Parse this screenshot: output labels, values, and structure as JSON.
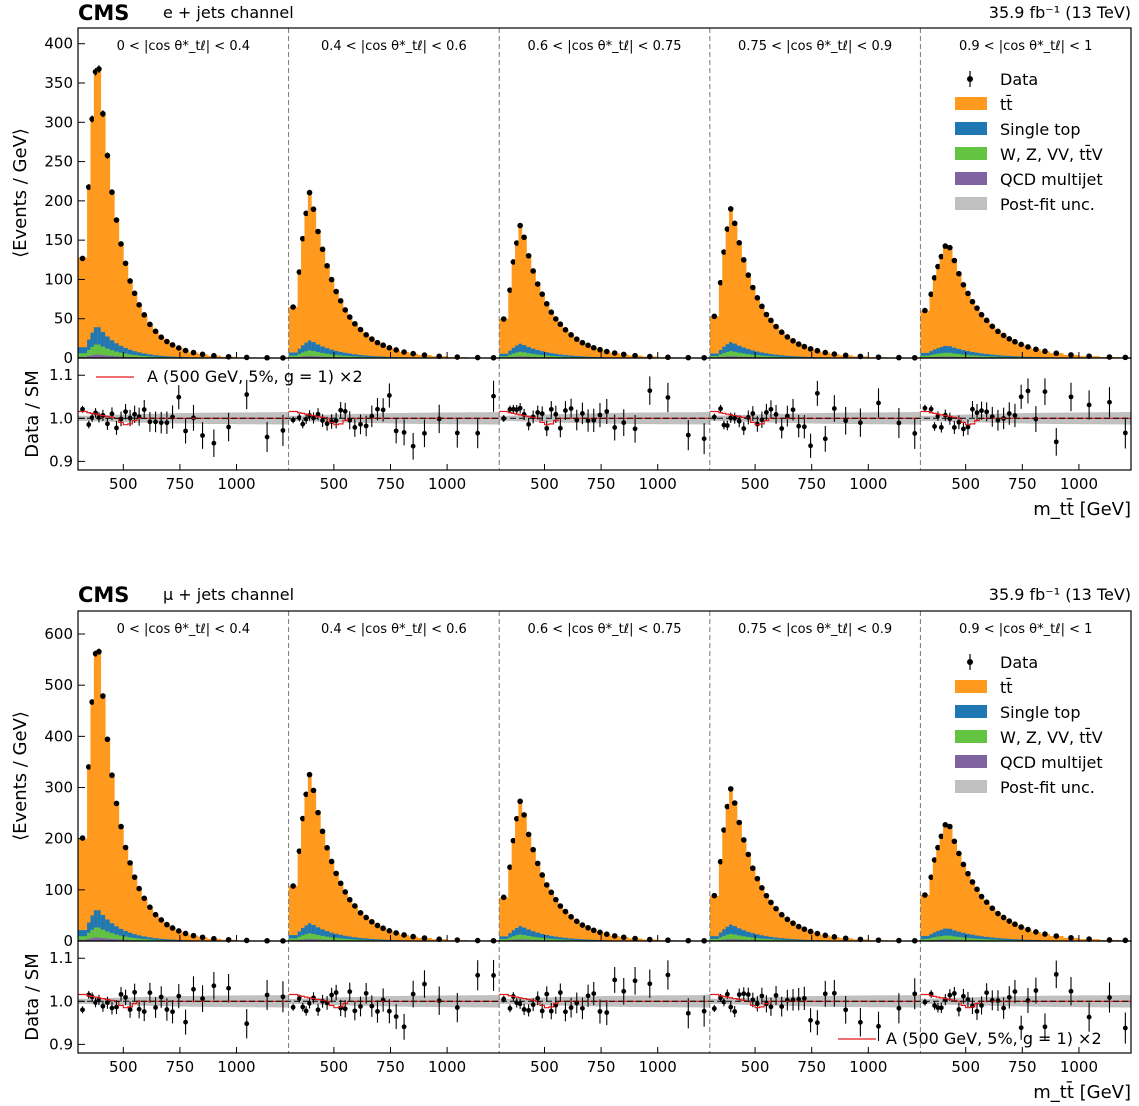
{
  "chart_data": [
    {
      "type": "bar",
      "stacked": true,
      "experiment": "CMS",
      "channel": "e + jets channel",
      "lumi": "35.9 fb⁻¹ (13 TeV)",
      "ylabel": "⟨Events / GeV⟩",
      "ratio_ylabel": "Data / SM",
      "xlabel": "m_tt̄ [GeV]",
      "ylim": [
        0,
        420
      ],
      "yticks": [
        0,
        50,
        100,
        150,
        200,
        250,
        300,
        350,
        400
      ],
      "ratio_ylim": [
        0.88,
        1.14
      ],
      "ratio_yticks": [
        "0.9",
        "1.0",
        "1.1"
      ],
      "xticks": [
        "500",
        "750",
        "1000"
      ],
      "xlim_per_bin": [
        300,
        1230
      ],
      "cos_bins": [
        "0 < |cos θ*_tℓ| < 0.4",
        "0.4 < |cos θ*_tℓ| < 0.6",
        "0.6 < |cos θ*_tℓ| < 0.75",
        "0.75 < |cos θ*_tℓ| < 0.9",
        "0.9 < |cos θ*_tℓ| < 1"
      ],
      "legend": [
        "Data",
        "tt̄",
        "Single top",
        "W, Z, VV, tt̄V",
        "QCD multijet",
        "Post-fit unc."
      ],
      "signal_label": "A (500 GeV, 5%, g = 1) ×2",
      "legend_position": "right",
      "signal_legend_position": "upper-left of ratio",
      "peaks": [
        393,
        213,
        173,
        193,
        150
      ],
      "first_bin": [
        128,
        65,
        50,
        53,
        60
      ],
      "colors": {
        "ttbar": "#ff9a1e",
        "single_top": "#1f77b4",
        "vjets": "#63c442",
        "qcd": "#8064a2",
        "unc": "#c0c0c0",
        "signal": "#e31a1c",
        "data": "#000000"
      }
    },
    {
      "type": "bar",
      "stacked": true,
      "experiment": "CMS",
      "channel": "μ + jets channel",
      "lumi": "35.9 fb⁻¹ (13 TeV)",
      "ylabel": "⟨Events / GeV⟩",
      "ratio_ylabel": "Data / SM",
      "xlabel": "m_tt̄ [GeV]",
      "ylim": [
        0,
        645
      ],
      "yticks": [
        0,
        100,
        200,
        300,
        400,
        500,
        600
      ],
      "ratio_ylim": [
        0.88,
        1.14
      ],
      "ratio_yticks": [
        "0.9",
        "1.0",
        "1.1"
      ],
      "xticks": [
        "500",
        "750",
        "1000"
      ],
      "xlim_per_bin": [
        300,
        1230
      ],
      "cos_bins": [
        "0 < |cos θ*_tℓ| < 0.4",
        "0.4 < |cos θ*_tℓ| < 0.6",
        "0.6 < |cos θ*_tℓ| < 0.75",
        "0.75 < |cos θ*_tℓ| < 0.9",
        "0.9 < |cos θ*_tℓ| < 1"
      ],
      "legend": [
        "Data",
        "tt̄",
        "Single top",
        "W, Z, VV, tt̄V",
        "QCD multijet",
        "Post-fit unc."
      ],
      "signal_label": "A (500 GeV, 5%, g = 1) ×2",
      "legend_position": "right",
      "signal_legend_position": "lower-right of ratio",
      "peaks": [
        603,
        330,
        278,
        306,
        238
      ],
      "first_bin": [
        200,
        108,
        85,
        88,
        90
      ],
      "colors": {
        "ttbar": "#ff9a1e",
        "single_top": "#1f77b4",
        "vjets": "#63c442",
        "qcd": "#8064a2",
        "unc": "#c0c0c0",
        "signal": "#e31a1c",
        "data": "#000000"
      }
    }
  ]
}
